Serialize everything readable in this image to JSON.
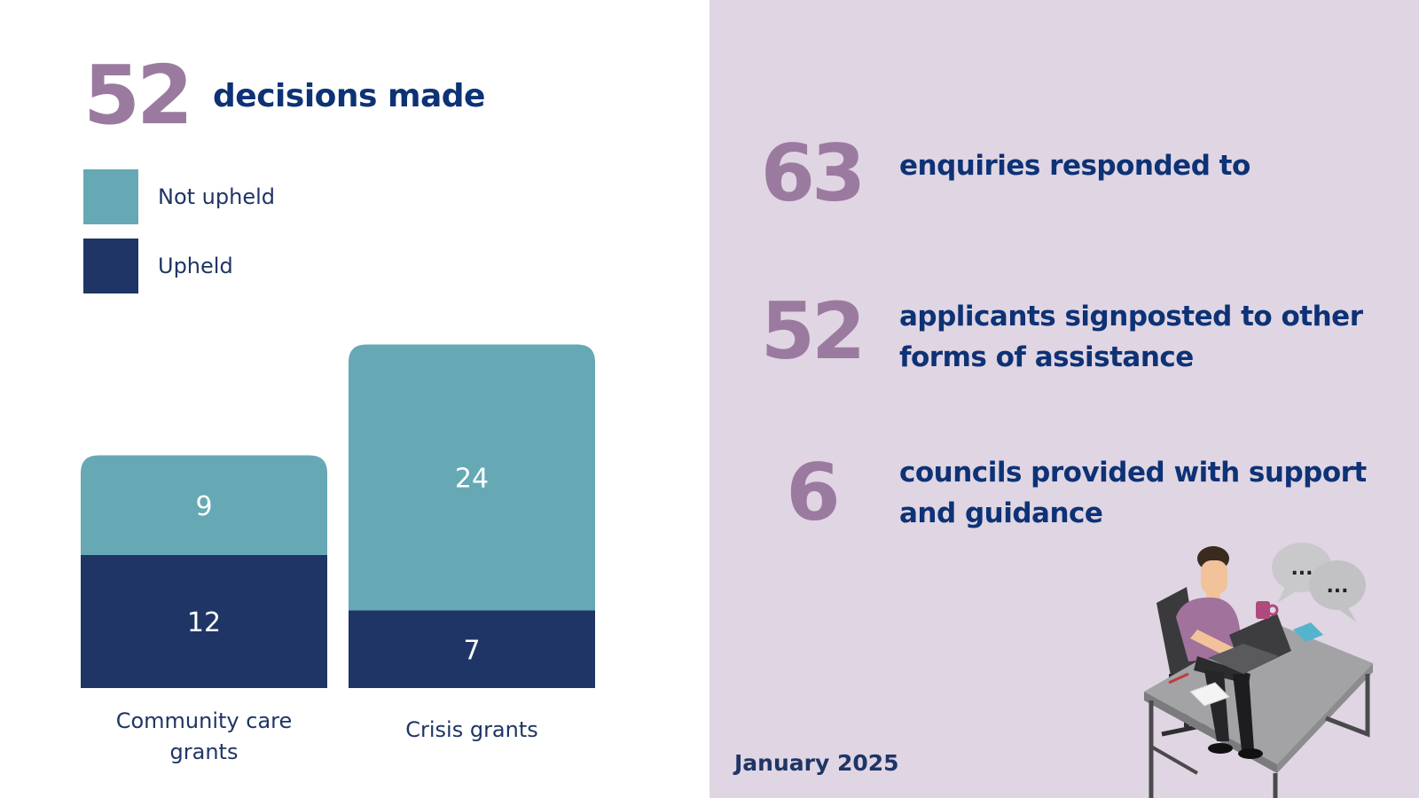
{
  "headline": {
    "number": "52",
    "label": "decisions made"
  },
  "legend": [
    {
      "label": "Not upheld",
      "color": "#66a9b5"
    },
    {
      "label": "Upheld",
      "color": "#1f3565"
    }
  ],
  "chart_data": {
    "type": "bar",
    "stacked": true,
    "categories": [
      "Community care grants",
      "Crisis grants"
    ],
    "series": [
      {
        "name": "Upheld",
        "values": [
          12,
          7
        ],
        "color": "#1f3565"
      },
      {
        "name": "Not upheld",
        "values": [
          9,
          24
        ],
        "color": "#66a9b5"
      }
    ],
    "ylim": [
      0,
      31
    ],
    "grid": false,
    "legend_placement": "top-left"
  },
  "stats": [
    {
      "number": "63",
      "label": "enquiries responded to"
    },
    {
      "number": "52",
      "label": "applicants signposted to other forms of assistance"
    },
    {
      "number": "6",
      "label": "councils provided with support and guidance"
    }
  ],
  "illustration": {
    "icon": "person-at-desk-with-speech-bubbles-icon",
    "bubble_text": [
      "...",
      "..."
    ]
  },
  "footer": {
    "date": "January 2025"
  }
}
